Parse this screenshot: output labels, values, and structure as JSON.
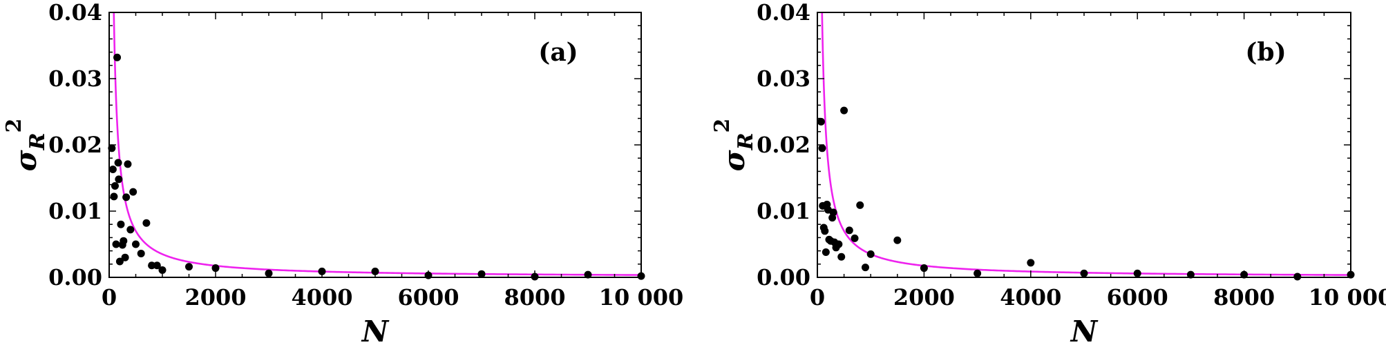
{
  "chart_data": [
    {
      "type": "scatter",
      "panel_label": "(a)",
      "xlabel": "N",
      "ylabel_symbol": "σ",
      "ylabel_subscript": "R",
      "ylabel_superscript": "2",
      "xlim": [
        0,
        10000
      ],
      "ylim": [
        0,
        0.04
      ],
      "xticks": [
        0,
        2000,
        4000,
        6000,
        8000,
        10000
      ],
      "xtick_labels": [
        "0",
        "2000",
        "4000",
        "6000",
        "8000",
        "10 000"
      ],
      "yticks": [
        0,
        0.01,
        0.02,
        0.03,
        0.04
      ],
      "ytick_labels": [
        "0.00",
        "0.01",
        "0.02",
        "0.03",
        "0.04"
      ],
      "curve": {
        "form": "a/N",
        "a": 3.5,
        "color": "#ee22ee"
      },
      "marker_color": "#000000",
      "points": [
        [
          50,
          0.0195
        ],
        [
          70,
          0.0163
        ],
        [
          90,
          0.0122
        ],
        [
          110,
          0.0138
        ],
        [
          130,
          0.005
        ],
        [
          150,
          0.0332
        ],
        [
          170,
          0.0173
        ],
        [
          180,
          0.0148
        ],
        [
          200,
          0.0024
        ],
        [
          220,
          0.008
        ],
        [
          250,
          0.0049
        ],
        [
          270,
          0.0055
        ],
        [
          300,
          0.003
        ],
        [
          320,
          0.0121
        ],
        [
          350,
          0.0171
        ],
        [
          400,
          0.0072
        ],
        [
          450,
          0.0129
        ],
        [
          500,
          0.005
        ],
        [
          600,
          0.0036
        ],
        [
          700,
          0.0082
        ],
        [
          800,
          0.0018
        ],
        [
          900,
          0.0018
        ],
        [
          1000,
          0.0011
        ],
        [
          1500,
          0.0016
        ],
        [
          2000,
          0.0014
        ],
        [
          3000,
          0.0006
        ],
        [
          4000,
          0.0009
        ],
        [
          5000,
          0.0009
        ],
        [
          6000,
          0.0003
        ],
        [
          7000,
          0.0005
        ],
        [
          8000,
          0.0001
        ],
        [
          9000,
          0.0004
        ],
        [
          10000,
          0.0002
        ]
      ]
    },
    {
      "type": "scatter",
      "panel_label": "(b)",
      "xlabel": "N",
      "ylabel_symbol": "σ",
      "ylabel_subscript": "R",
      "ylabel_superscript": "2",
      "xlim": [
        0,
        10000
      ],
      "ylim": [
        0,
        0.04
      ],
      "xticks": [
        0,
        2000,
        4000,
        6000,
        8000,
        10000
      ],
      "xtick_labels": [
        "0",
        "2000",
        "4000",
        "6000",
        "8000",
        "10 000"
      ],
      "yticks": [
        0,
        0.01,
        0.02,
        0.03,
        0.04
      ],
      "ytick_labels": [
        "0.00",
        "0.01",
        "0.02",
        "0.03",
        "0.04"
      ],
      "curve": {
        "form": "a/N",
        "a": 3.5,
        "color": "#ee22ee"
      },
      "marker_color": "#000000",
      "points": [
        [
          70,
          0.0235
        ],
        [
          90,
          0.0195
        ],
        [
          100,
          0.0108
        ],
        [
          120,
          0.0075
        ],
        [
          140,
          0.007
        ],
        [
          160,
          0.0038
        ],
        [
          180,
          0.011
        ],
        [
          200,
          0.0102
        ],
        [
          220,
          0.0057
        ],
        [
          250,
          0.0055
        ],
        [
          280,
          0.009
        ],
        [
          300,
          0.0098
        ],
        [
          320,
          0.0053
        ],
        [
          350,
          0.0045
        ],
        [
          400,
          0.005
        ],
        [
          450,
          0.0031
        ],
        [
          500,
          0.0252
        ],
        [
          600,
          0.0071
        ],
        [
          700,
          0.0059
        ],
        [
          800,
          0.0109
        ],
        [
          900,
          0.0015
        ],
        [
          1000,
          0.0035
        ],
        [
          1500,
          0.0056
        ],
        [
          2000,
          0.0014
        ],
        [
          3000,
          0.0006
        ],
        [
          4000,
          0.0022
        ],
        [
          5000,
          0.0006
        ],
        [
          6000,
          0.0006
        ],
        [
          7000,
          0.0004
        ],
        [
          8000,
          0.0004
        ],
        [
          9000,
          0.0001
        ],
        [
          10000,
          0.0004
        ]
      ]
    }
  ]
}
